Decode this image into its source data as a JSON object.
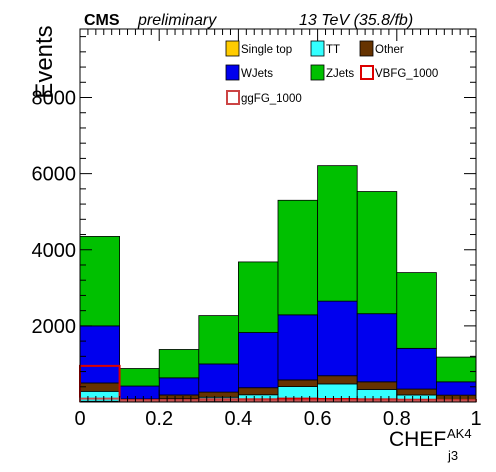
{
  "header": {
    "experiment": "CMS",
    "status": "preliminary",
    "energy": "13 TeV (35.8/fb)"
  },
  "chart_data": {
    "type": "bar",
    "stacked": true,
    "histogram": true,
    "xlabel": "CHEF",
    "xlabel_superscript": "AK4",
    "xlabel_subscript": "j3",
    "ylabel": "Events",
    "xlim": [
      0,
      1
    ],
    "ylim": [
      0,
      9800
    ],
    "bin_edges": [
      0,
      0.1,
      0.2,
      0.3,
      0.4,
      0.5,
      0.6,
      0.7,
      0.8,
      0.9,
      1.0
    ],
    "x_ticks": [
      "0",
      "0.2",
      "0.4",
      "0.6",
      "0.8",
      "1"
    ],
    "x_tick_values": [
      0,
      0.2,
      0.4,
      0.6,
      0.8,
      1.0
    ],
    "y_ticks": [
      "2000",
      "4000",
      "6000",
      "8000"
    ],
    "y_tick_values": [
      2000,
      4000,
      6000,
      8000
    ],
    "grid": false,
    "legend_position": "top-right",
    "series": [
      {
        "name": "Single top",
        "legend_color": "#ffcc00",
        "color": "#ffcc00",
        "style": "stack",
        "values": [
          20,
          5,
          10,
          15,
          20,
          25,
          25,
          20,
          15,
          10
        ]
      },
      {
        "name": "TT",
        "legend_color": "#33ffff",
        "color": "#33ffff",
        "style": "stack",
        "values": [
          260,
          25,
          75,
          110,
          170,
          380,
          450,
          310,
          170,
          40
        ]
      },
      {
        "name": "Other",
        "legend_color": "#663300",
        "color": "#663300",
        "style": "stack",
        "values": [
          220,
          50,
          100,
          135,
          185,
          175,
          215,
          200,
          155,
          130
        ]
      },
      {
        "name": "WJets",
        "legend_color": "#0000ee",
        "color": "#0000ee",
        "style": "stack",
        "values": [
          1500,
          340,
          450,
          740,
          1450,
          1710,
          1960,
          1790,
          1070,
          350
        ]
      },
      {
        "name": "ZJets",
        "legend_color": "#00c000",
        "color": "#00c000",
        "style": "stack",
        "values": [
          2350,
          460,
          745,
          1270,
          1855,
          3010,
          3560,
          3210,
          1990,
          650
        ]
      },
      {
        "name": "VBFG_1000",
        "legend_color": "#dd0000",
        "color": "#dd0000",
        "style": "outline",
        "values": [
          950,
          50,
          50,
          70,
          70,
          90,
          80,
          70,
          60,
          50
        ]
      },
      {
        "name": "ggFG_1000",
        "legend_color": "#cc4444",
        "color": "#c85050",
        "style": "outline",
        "values": [
          90,
          40,
          40,
          45,
          40,
          40,
          40,
          40,
          40,
          40
        ]
      }
    ]
  }
}
